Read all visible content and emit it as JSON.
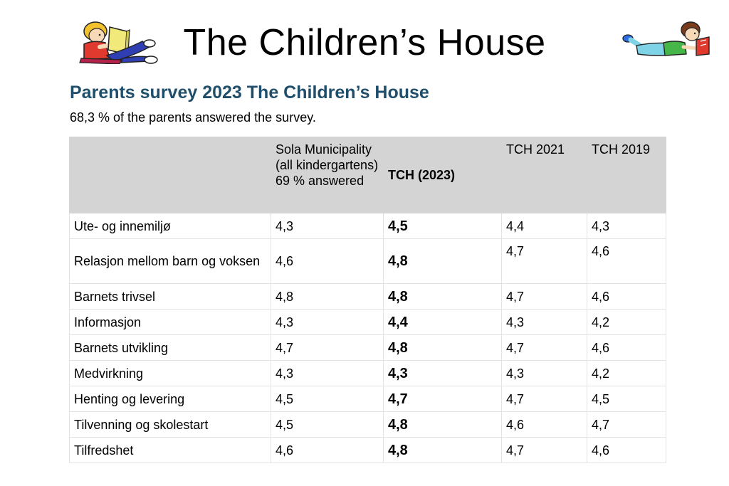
{
  "header": {
    "title": "The Children’s House"
  },
  "survey": {
    "title": "Parents survey 2023 The Children’s House",
    "response_rate_text": "68,3 % of the parents answered the survey."
  },
  "table": {
    "headers": {
      "blank": "",
      "sola": "Sola Municipality (all kindergartens) 69 % answered",
      "tch2023": "TCH (2023)",
      "tch2021": "TCH 2021",
      "tch2019": "TCH 2019"
    },
    "rows": [
      {
        "category": "Ute- og innemiljø",
        "sola": "4,3",
        "tch2023": "4,5",
        "tch2021": "4,4",
        "tch2019": "4,3"
      },
      {
        "category": "Relasjon mellom barn og voksen",
        "sola": "4,6",
        "tch2023": "4,8",
        "tch2021": "4,7",
        "tch2019": "4,6"
      },
      {
        "category": "Barnets trivsel",
        "sola": "4,8",
        "tch2023": "4,8",
        "tch2021": "4,7",
        "tch2019": "4,6"
      },
      {
        "category": "Informasjon",
        "sola": "4,3",
        "tch2023": "4,4",
        "tch2021": "4,3",
        "tch2019": "4,2"
      },
      {
        "category": "Barnets utvikling",
        "sola": "4,7",
        "tch2023": "4,8",
        "tch2021": "4,7",
        "tch2019": "4,6"
      },
      {
        "category": "Medvirkning",
        "sola": "4,3",
        "tch2023": "4,3",
        "tch2021": "4,3",
        "tch2019": "4,2"
      },
      {
        "category": "Henting og levering",
        "sola": "4,5",
        "tch2023": "4,7",
        "tch2021": "4,7",
        "tch2019": "4,5"
      },
      {
        "category": "Tilvenning og skolestart",
        "sola": "4,5",
        "tch2023": "4,8",
        "tch2021": "4,6",
        "tch2019": "4,7"
      },
      {
        "category": "Tilfredshet",
        "sola": "4,6",
        "tch2023": "4,8",
        "tch2021": "4,7",
        "tch2019": "4,6"
      }
    ]
  },
  "illustrations": {
    "left": "reading-child-icon",
    "right": "lying-reading-girl-icon"
  }
}
